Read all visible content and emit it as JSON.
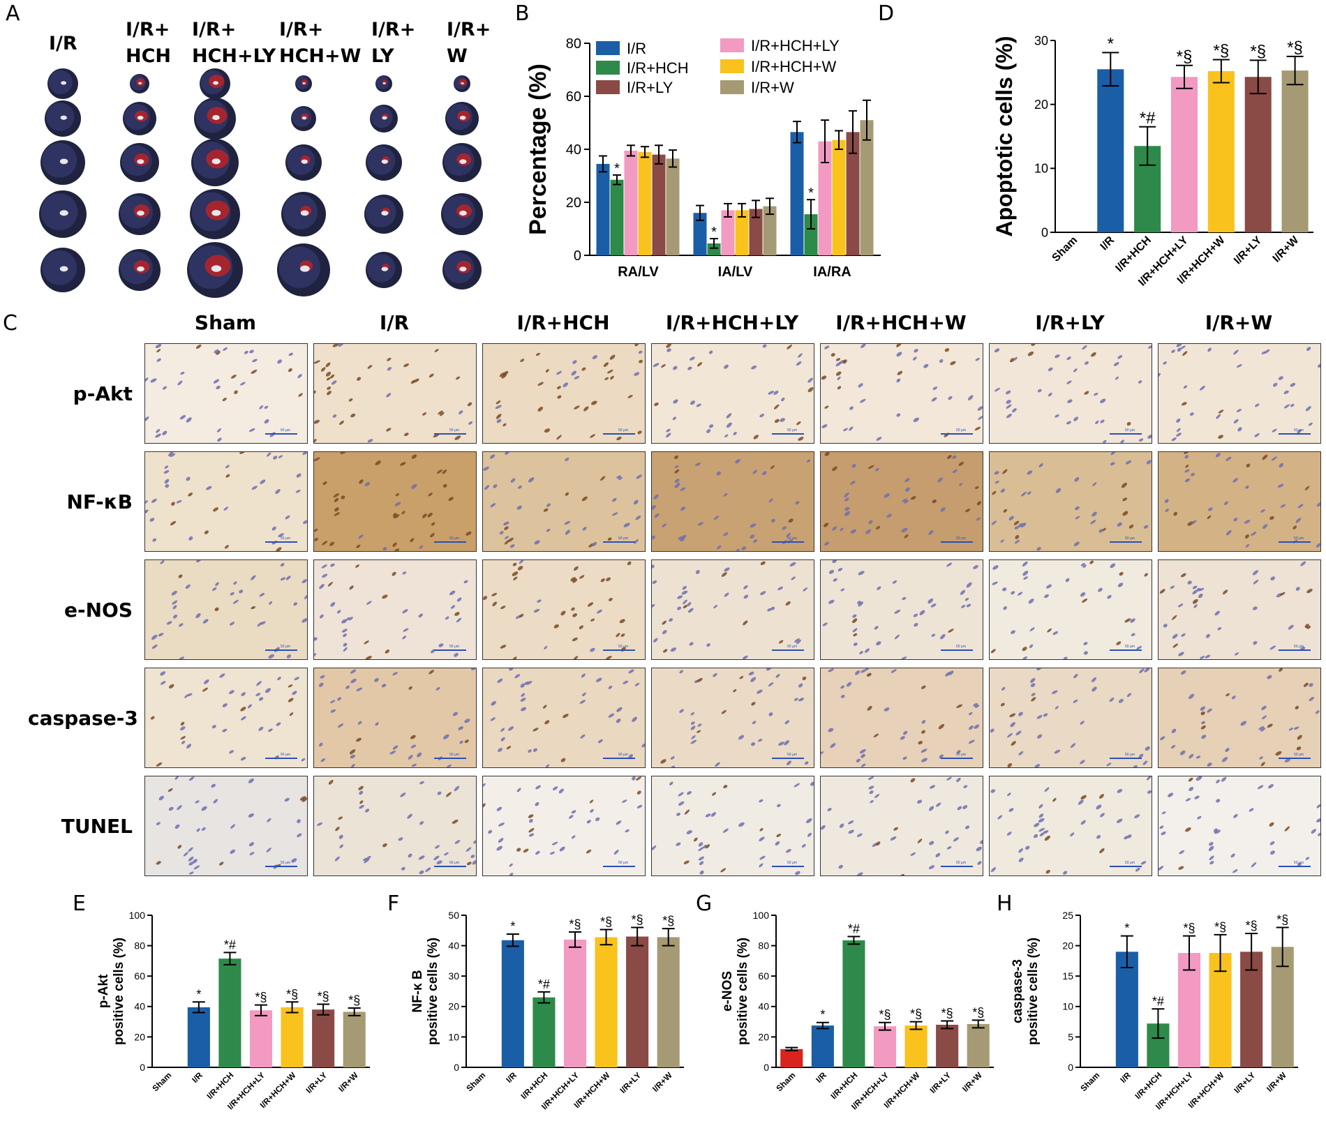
{
  "panel_letters": {
    "A": "A",
    "B": "B",
    "C": "C",
    "D": "D",
    "E": "E",
    "F": "F",
    "G": "G",
    "H": "H"
  },
  "panelA": {
    "columns": [
      {
        "line1": "I/R",
        "line2": ""
      },
      {
        "line1": "I/R+",
        "line2": "HCH"
      },
      {
        "line1": "I/R+",
        "line2": "HCH+LY"
      },
      {
        "line1": "I/R+",
        "line2": "HCH+W"
      },
      {
        "line1": "I/R+",
        "line2": "LY"
      },
      {
        "line1": "I/R+",
        "line2": "W"
      }
    ]
  },
  "panelC": {
    "columns": [
      "Sham",
      "I/R",
      "I/R+HCH",
      "I/R+HCH+LY",
      "I/R+HCH+W",
      "I/R+LY",
      "I/R+W"
    ],
    "rows": [
      "p-Akt",
      "NF-κB",
      "e-NOS",
      "caspase-3",
      "TUNEL"
    ],
    "scale_text": "50 μm",
    "tile_colors": [
      [
        "#f4ece1",
        "#efe0cb",
        "#ecdac2",
        "#f2e6d6",
        "#f2e7d8",
        "#f1e6d8",
        "#f1e6d6"
      ],
      [
        "#efe2cd",
        "#c9a06a",
        "#ddc39d",
        "#c8a272",
        "#c59d6e",
        "#d9bd94",
        "#d3b286"
      ],
      [
        "#eadbc3",
        "#eee3d6",
        "#ecdcc6",
        "#ede2d2",
        "#eee4d6",
        "#f1eadf",
        "#ede2d3"
      ],
      [
        "#efe3d2",
        "#e3c8a8",
        "#ead8c0",
        "#ebdbc6",
        "#e7d1b8",
        "#ead9c4",
        "#e6d0b6"
      ],
      [
        "#e7e4e2",
        "#ebe3d6",
        "#f3eee8",
        "#f0ebe3",
        "#efe8de",
        "#f0e9de",
        "#f3efea"
      ]
    ]
  },
  "chart_data": [
    {
      "id": "B",
      "type": "bar",
      "ylabel": "Percentage (%)",
      "ylim": [
        0,
        80
      ],
      "yticks": [
        "0",
        "20",
        "40",
        "60",
        "80"
      ],
      "categories": [
        "RA/LV",
        "IA/LV",
        "IA/RA"
      ],
      "series": [
        {
          "name": "I/R",
          "color": "#1b5ea8",
          "values": [
            34.5,
            16.0,
            46.5
          ],
          "errors": [
            3.0,
            2.8,
            4.0
          ],
          "sig": [
            "",
            "",
            ""
          ]
        },
        {
          "name": "I/R+HCH",
          "color": "#2e8a4a",
          "values": [
            28.5,
            4.5,
            15.5
          ],
          "errors": [
            1.8,
            1.8,
            5.5
          ],
          "sig": [
            "*",
            "*",
            "*"
          ]
        },
        {
          "name": "I/R+LY",
          "color": "#8a4a45",
          "values": [
            38.0,
            17.5,
            46.5
          ],
          "errors": [
            3.5,
            3.2,
            8.0
          ],
          "sig": [
            "",
            "",
            ""
          ]
        },
        {
          "name": "I/R+HCH+LY",
          "color": "#f29ac2",
          "values": [
            39.5,
            17.0,
            43.0
          ],
          "errors": [
            2.0,
            2.5,
            8.0
          ],
          "sig": [
            "",
            "",
            ""
          ]
        },
        {
          "name": "I/R+HCH+W",
          "color": "#f9c21c",
          "values": [
            39.0,
            17.0,
            43.5
          ],
          "errors": [
            2.0,
            2.5,
            3.5
          ],
          "sig": [
            "",
            "",
            ""
          ]
        },
        {
          "name": "I/R+W",
          "color": "#a59a73",
          "values": [
            36.5,
            18.5,
            51.0
          ],
          "errors": [
            3.2,
            3.0,
            7.5
          ],
          "sig": [
            "",
            "",
            ""
          ]
        }
      ],
      "draw_order": [
        "I/R",
        "I/R+HCH",
        "I/R+HCH+LY",
        "I/R+HCH+W",
        "I/R+LY",
        "I/R+W"
      ],
      "legend": "top"
    },
    {
      "id": "D",
      "type": "bar",
      "ylabel": "Apoptotic cells (%)",
      "ylim": [
        0,
        30
      ],
      "yticks": [
        "0",
        "10",
        "20",
        "30"
      ],
      "categories": [
        "Sham",
        "I/R",
        "I/R+HCH",
        "I/R+HCH+LY",
        "I/R+HCH+W",
        "I/R+LY",
        "I/R+W"
      ],
      "values": [
        0,
        25.5,
        13.5,
        24.3,
        25.2,
        24.3,
        25.3
      ],
      "errors": [
        0,
        2.6,
        3.0,
        1.8,
        1.8,
        2.6,
        2.2
      ],
      "colors": [
        "#d8231f",
        "#1b5ea8",
        "#2e8a4a",
        "#f29ac2",
        "#f9c21c",
        "#8a4a45",
        "#a59a73"
      ],
      "sig": [
        "",
        "*",
        "*#",
        "*§",
        "*§",
        "*§",
        "*§"
      ]
    },
    {
      "id": "E",
      "type": "bar",
      "ylabel": "positive cells (%)",
      "ylabel_top": "p-Akt",
      "ylim": [
        0,
        100
      ],
      "yticks": [
        "0",
        "20",
        "40",
        "60",
        "80",
        "100"
      ],
      "categories": [
        "Sham",
        "I/R",
        "I/R+HCH",
        "I/R+HCH+LY",
        "I/R+HCH+W",
        "I/R+LY",
        "I/R+W"
      ],
      "values": [
        0,
        39.5,
        71.5,
        37.5,
        39.5,
        38.0,
        36.5
      ],
      "errors": [
        0,
        3.5,
        4.0,
        3.5,
        3.5,
        3.5,
        2.5
      ],
      "colors": [
        "#d8231f",
        "#1b5ea8",
        "#2e8a4a",
        "#f29ac2",
        "#f9c21c",
        "#8a4a45",
        "#a59a73"
      ],
      "sig": [
        "",
        "*",
        "*#",
        "*§",
        "*§",
        "*§",
        "*§"
      ]
    },
    {
      "id": "F",
      "type": "bar",
      "ylabel": "positive cells (%)",
      "ylabel_top": "NF-κ B",
      "ylim": [
        0,
        50
      ],
      "yticks": [
        "0",
        "10",
        "20",
        "30",
        "40",
        "50"
      ],
      "categories": [
        "Sham",
        "I/R",
        "I/R+HCH",
        "I/R+HCH+LY",
        "I/R+HCH+W",
        "I/R+LY",
        "I/R+W"
      ],
      "values": [
        0,
        41.8,
        23.0,
        42.0,
        42.8,
        43.0,
        42.8
      ],
      "errors": [
        0,
        2.0,
        1.8,
        2.5,
        2.5,
        3.0,
        2.8
      ],
      "colors": [
        "#d8231f",
        "#1b5ea8",
        "#2e8a4a",
        "#f29ac2",
        "#f9c21c",
        "#8a4a45",
        "#a59a73"
      ],
      "sig": [
        "",
        "*",
        "*#",
        "*§",
        "*§",
        "*§",
        "*§"
      ]
    },
    {
      "id": "G",
      "type": "bar",
      "ylabel": "positive cells (%)",
      "ylabel_top": "e-NOS",
      "ylim": [
        0,
        100
      ],
      "yticks": [
        "0",
        "20",
        "40",
        "60",
        "80",
        "100"
      ],
      "categories": [
        "Sham",
        "I/R",
        "I/R+HCH",
        "I/R+HCH+LY",
        "I/R+HCH+W",
        "I/R+LY",
        "I/R+W"
      ],
      "values": [
        12,
        27.5,
        83.5,
        27.0,
        27.5,
        28.0,
        28.5
      ],
      "errors": [
        1.0,
        2.0,
        2.5,
        2.5,
        2.5,
        2.5,
        2.5
      ],
      "colors": [
        "#d8231f",
        "#1b5ea8",
        "#2e8a4a",
        "#f29ac2",
        "#f9c21c",
        "#8a4a45",
        "#a59a73"
      ],
      "sig": [
        "",
        "*",
        "*#",
        "*§",
        "*§",
        "*§",
        "*§"
      ]
    },
    {
      "id": "H",
      "type": "bar",
      "ylabel": "positive cells (%)",
      "ylabel_top": "caspase-3",
      "ylim": [
        0,
        25
      ],
      "yticks": [
        "0",
        "5",
        "10",
        "15",
        "20",
        "25"
      ],
      "categories": [
        "Sham",
        "I/R",
        "I/R+HCH",
        "I/R+HCH+LY",
        "I/R+HCH+W",
        "I/R+LY",
        "I/R+W"
      ],
      "values": [
        0,
        19.0,
        7.2,
        18.8,
        18.8,
        19.0,
        19.8
      ],
      "errors": [
        0,
        2.6,
        2.4,
        2.8,
        3.0,
        3.0,
        3.2
      ],
      "colors": [
        "#d8231f",
        "#1b5ea8",
        "#2e8a4a",
        "#f29ac2",
        "#f9c21c",
        "#8a4a45",
        "#a59a73"
      ],
      "sig": [
        "",
        "*",
        "*#",
        "*§",
        "*§",
        "*§",
        "*§"
      ]
    }
  ]
}
